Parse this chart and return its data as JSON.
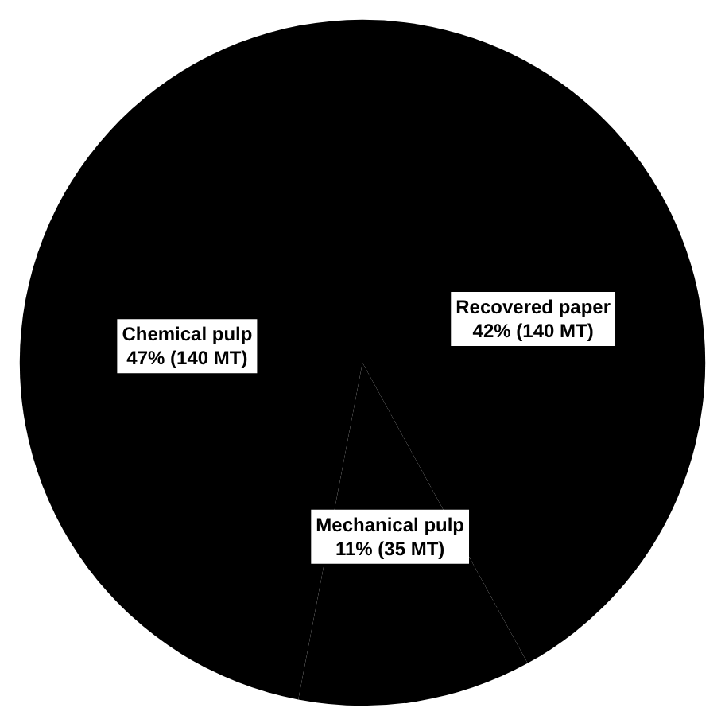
{
  "chart_data": {
    "type": "pie",
    "categories": [
      "Recovered paper",
      "Mechanical pulp",
      "Chemical pulp"
    ],
    "values": [
      42,
      11,
      47
    ],
    "value_labels": [
      "42% (140 MT)",
      "11% (35 MT)",
      "47% (140 MT)"
    ],
    "colors": [
      "#000000",
      "#000000",
      "#000000"
    ],
    "legend": false
  }
}
